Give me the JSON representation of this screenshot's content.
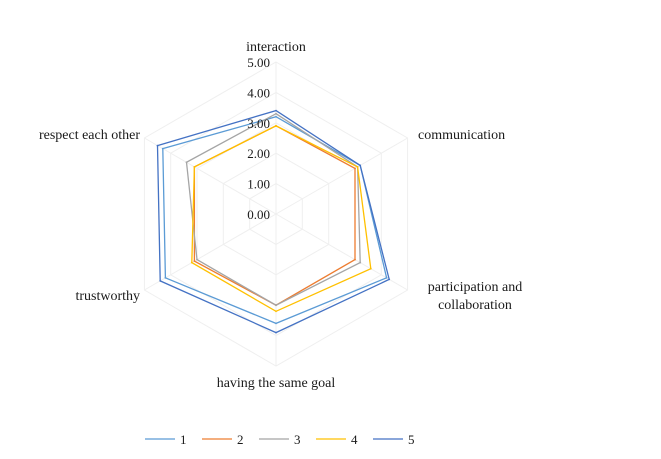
{
  "chart_data": {
    "type": "radar",
    "title": "",
    "axes": [
      "interaction",
      "communication",
      "participation and collaboration",
      "having the same goal",
      "trustworthy",
      "respect each other"
    ],
    "axis_label_lines": [
      [
        "interaction"
      ],
      [
        "communication"
      ],
      [
        "participation and",
        "collaboration"
      ],
      [
        "having the same goal"
      ],
      [
        "trustworthy"
      ],
      [
        "respect each other"
      ]
    ],
    "ticks": [
      "0.00",
      "1.00",
      "2.00",
      "3.00",
      "4.00",
      "5.00"
    ],
    "rlim": [
      0,
      5
    ],
    "grid": true,
    "legend_position": "bottom",
    "series": [
      {
        "name": "1",
        "color": "#5b9bd5",
        "values": [
          3.2,
          3.2,
          4.2,
          3.6,
          4.2,
          4.3
        ]
      },
      {
        "name": "2",
        "color": "#ed7d31",
        "values": [
          2.9,
          3.0,
          3.0,
          3.0,
          3.1,
          3.1
        ]
      },
      {
        "name": "3",
        "color": "#a5a5a5",
        "values": [
          3.3,
          3.1,
          3.2,
          3.0,
          3.0,
          3.4
        ]
      },
      {
        "name": "4",
        "color": "#ffc000",
        "values": [
          2.9,
          3.1,
          3.6,
          3.2,
          3.2,
          3.1
        ]
      },
      {
        "name": "5",
        "color": "#4472c4",
        "values": [
          3.4,
          3.2,
          4.3,
          3.9,
          4.4,
          4.5
        ]
      }
    ]
  }
}
